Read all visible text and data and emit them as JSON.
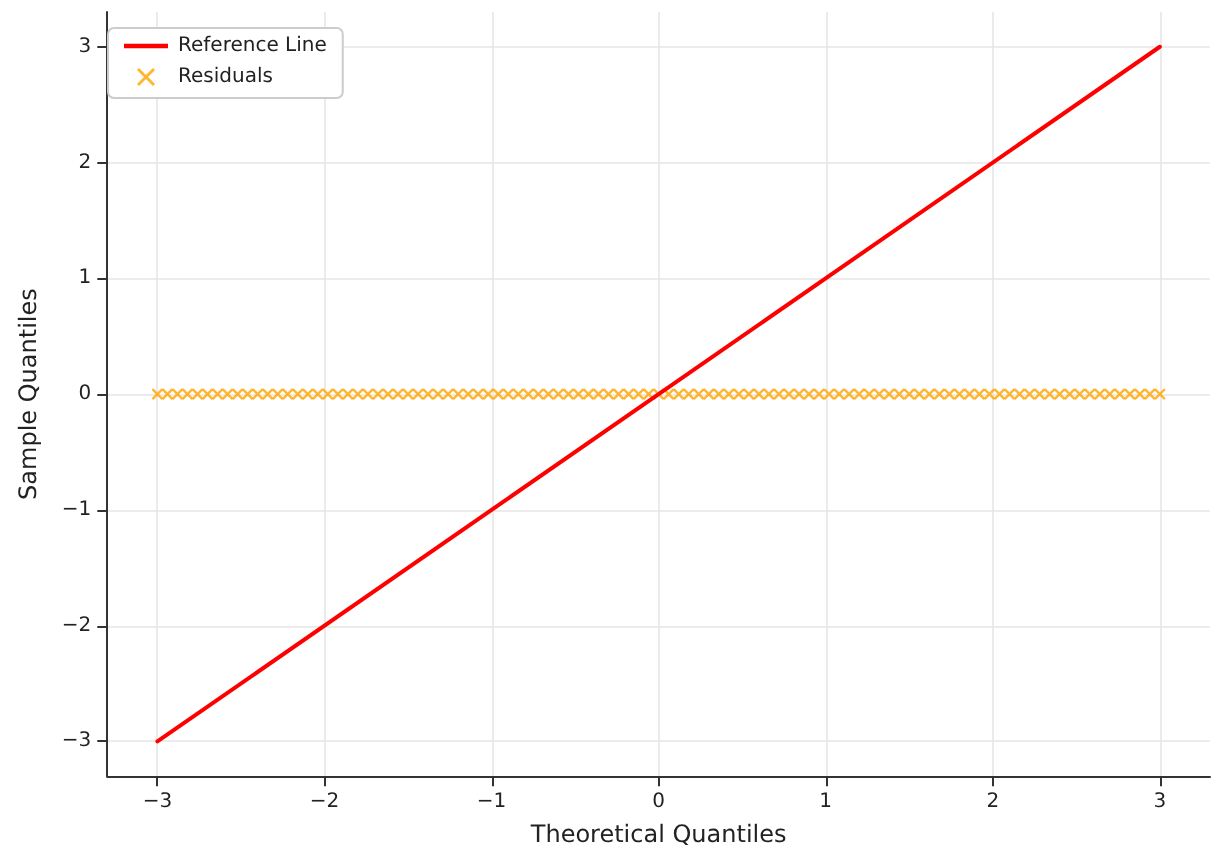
{
  "chart_data": {
    "type": "scatter",
    "xlabel": "Theoretical Quantiles",
    "ylabel": "Sample Quantiles",
    "xlim": [
      -3.3,
      3.3
    ],
    "ylim": [
      -3.3,
      3.3
    ],
    "xticks": [
      -3,
      -2,
      -1,
      0,
      1,
      2,
      3
    ],
    "yticks": [
      -3,
      -2,
      -1,
      0,
      1,
      2,
      3
    ],
    "grid": true,
    "legend": "top left",
    "series": [
      {
        "name": "Reference Line",
        "type": "line",
        "color": "#ff0000",
        "marker": "none",
        "line_style": "solid",
        "x": [
          -3,
          3
        ],
        "values": [
          -3,
          3
        ]
      },
      {
        "name": "Residuals",
        "color": "#ffa500",
        "marker": "cross",
        "x": [
          -3,
          -2.94,
          -2.88,
          -2.82,
          -2.76,
          -2.7,
          -2.64,
          -2.58,
          -2.52,
          -2.46,
          -2.4,
          -2.34,
          -2.28,
          -2.22,
          -2.16,
          -2.1,
          -2.04,
          -1.98,
          -1.92,
          -1.86,
          -1.8,
          -1.74,
          -1.68,
          -1.62,
          -1.56,
          -1.5,
          -1.44,
          -1.38,
          -1.32,
          -1.26,
          -1.2,
          -1.14,
          -1.08,
          -1.02,
          -0.96,
          -0.9,
          -0.84,
          -0.78,
          -0.72,
          -0.66,
          -0.6,
          -0.54,
          -0.48,
          -0.42,
          -0.36,
          -0.3,
          -0.24,
          -0.18,
          -0.12,
          -0.06,
          0,
          0.06,
          0.12,
          0.18,
          0.24,
          0.3,
          0.36,
          0.42,
          0.48,
          0.54,
          0.6,
          0.66,
          0.72,
          0.78,
          0.84,
          0.9,
          0.96,
          1.02,
          1.08,
          1.14,
          1.2,
          1.26,
          1.32,
          1.38,
          1.44,
          1.5,
          1.56,
          1.62,
          1.68,
          1.74,
          1.8,
          1.86,
          1.92,
          1.98,
          2.04,
          2.1,
          2.16,
          2.22,
          2.28,
          2.34,
          2.4,
          2.46,
          2.52,
          2.58,
          2.64,
          2.7,
          2.76,
          2.82,
          2.88,
          2.94,
          3
        ],
        "values": [
          0,
          0,
          0,
          0,
          0,
          0,
          0,
          0,
          0,
          0,
          0,
          0,
          0,
          0,
          0,
          0,
          0,
          0,
          0,
          0,
          0,
          0,
          0,
          0,
          0,
          0,
          0,
          0,
          0,
          0,
          0,
          0,
          0,
          0,
          0,
          0,
          0,
          0,
          0,
          0,
          0,
          0,
          0,
          0,
          0,
          0,
          0,
          0,
          0,
          0,
          0,
          0,
          0,
          0,
          0,
          0,
          0,
          0,
          0,
          0,
          0,
          0,
          0,
          0,
          0,
          0,
          0,
          0,
          0,
          0,
          0,
          0,
          0,
          0,
          0,
          0,
          0,
          0,
          0,
          0,
          0,
          0,
          0,
          0,
          0,
          0,
          0,
          0,
          0,
          0,
          0,
          0,
          0,
          0,
          0,
          0,
          0,
          0,
          0,
          0,
          0
        ]
      }
    ]
  }
}
